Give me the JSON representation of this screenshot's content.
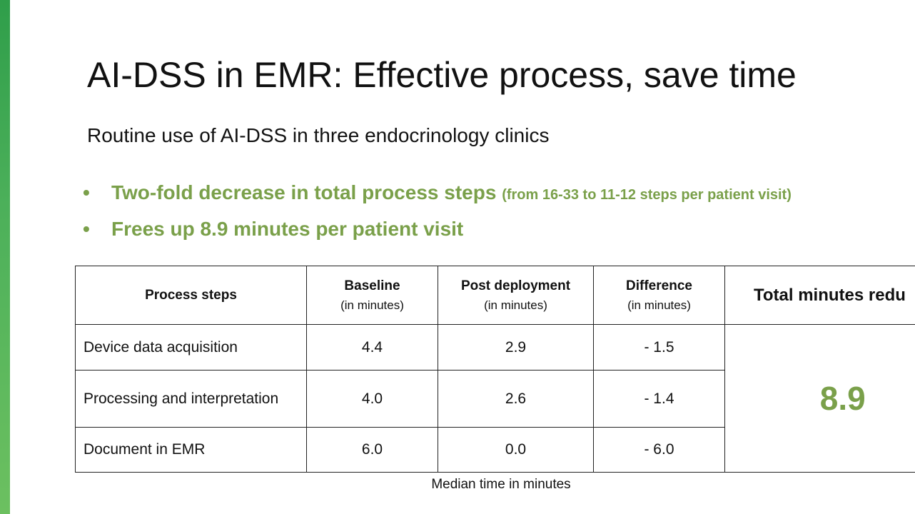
{
  "title": "AI-DSS in EMR: Effective process, save time",
  "subtitle": "Routine use of AI-DSS in three endocrinology clinics",
  "bullets": [
    {
      "text": "Two-fold decrease in total process steps",
      "note": "(from 16-33 to 11-12 steps per patient visit)"
    },
    {
      "text": "Frees up 8.9 minutes per patient visit"
    }
  ],
  "table": {
    "header": [
      {
        "label": "Process steps"
      },
      {
        "label": "Baseline",
        "unit": "(in minutes)"
      },
      {
        "label": "Post deployment",
        "unit": "(in minutes)"
      },
      {
        "label": "Difference",
        "unit": "(in minutes)"
      },
      {
        "label": "Total minutes redu"
      }
    ],
    "rows": [
      [
        "Device data acquisition",
        "4.4",
        "2.9",
        "- 1.5"
      ],
      [
        "Processing and interpretation",
        "4.0",
        "2.6",
        "- 1.4"
      ],
      [
        "Document in EMR",
        "6.0",
        "0.0",
        "- 6.0"
      ]
    ],
    "total": "8.9"
  },
  "caption": "Median time in minutes"
}
